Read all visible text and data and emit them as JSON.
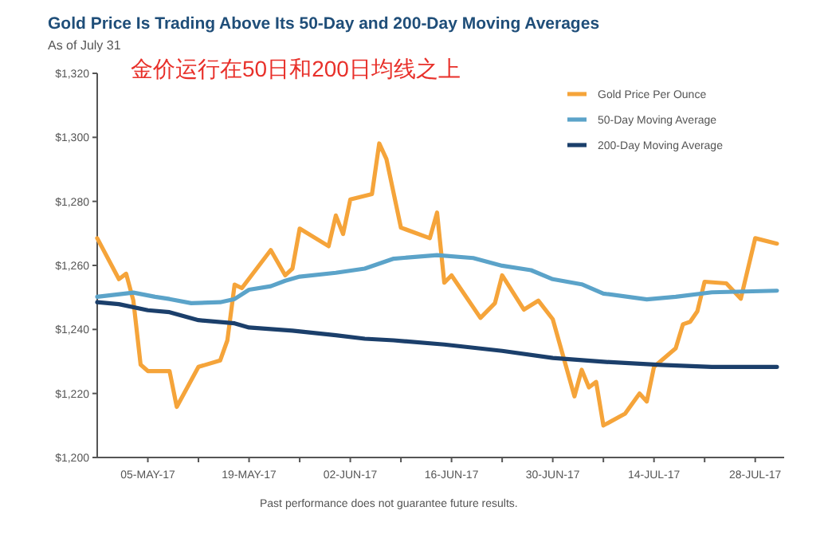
{
  "chart_data": {
    "type": "line",
    "title": "Gold Price Is Trading Above Its 50-Day and 200-Day Moving Averages",
    "subtitle": "As of July 31",
    "annotations": [
      "金价运行在50日和200日均线之上",
      "Past performance does not guarantee future results."
    ],
    "xlim": [
      "--04-28",
      "--08-01"
    ],
    "xticks": [
      {
        "value": "--05-05",
        "label": "05-MAY-17"
      },
      {
        "value": "--05-12",
        "label": null
      },
      {
        "value": "--05-19",
        "label": "19-MAY-17"
      },
      {
        "value": "--05-26",
        "label": null
      },
      {
        "value": "--06-02",
        "label": "02-JUN-17"
      },
      {
        "value": "--06-09",
        "label": null
      },
      {
        "value": "--06-16",
        "label": "16-JUN-17"
      },
      {
        "value": "--06-23",
        "label": null
      },
      {
        "value": "--06-30",
        "label": "30-JUN-17"
      },
      {
        "value": "--07-07",
        "label": null
      },
      {
        "value": "--07-14",
        "label": "14-JUL-17"
      },
      {
        "value": "--07-21",
        "label": null
      },
      {
        "value": "--07-28",
        "label": "28-JUL-17"
      }
    ],
    "ylim": [
      1200,
      1320
    ],
    "yticks": [
      {
        "value": 1200,
        "label": "$1,200"
      },
      {
        "value": 1220,
        "label": "$1,220"
      },
      {
        "value": 1240,
        "label": "$1,240"
      },
      {
        "value": 1260,
        "label": "$1,260"
      },
      {
        "value": 1280,
        "label": "$1,280"
      },
      {
        "value": 1300,
        "label": "$1,300"
      },
      {
        "value": 1320,
        "label": "$1,320"
      }
    ],
    "grid": false,
    "legend": "top right",
    "marker": "none",
    "line_style": "solid",
    "series": [
      {
        "name": "Gold Price Per Ounce",
        "color": "#f5a43a",
        "x": [
          "--04-28",
          "--05-01",
          "--05-02",
          "--05-03",
          "--05-04",
          "--05-05",
          "--05-08",
          "--05-09",
          "--05-12",
          "--05-15",
          "--05-16",
          "--05-17",
          "--05-18",
          "--05-22",
          "--05-24",
          "--05-25",
          "--05-26",
          "--05-30",
          "--05-31",
          "--06-01",
          "--06-02",
          "--06-05",
          "--06-06",
          "--06-07",
          "--06-09",
          "--06-13",
          "--06-14",
          "--06-15",
          "--06-16",
          "--06-20",
          "--06-22",
          "--06-23",
          "--06-26",
          "--06-28",
          "--06-30",
          "--07-03",
          "--07-04",
          "--07-05",
          "--07-06",
          "--07-07",
          "--07-10",
          "--07-12",
          "--07-13",
          "--07-14",
          "--07-17",
          "--07-18",
          "--07-19",
          "--07-20",
          "--07-21",
          "--07-24",
          "--07-26",
          "--07-28",
          "--07-31"
        ],
        "values": [
          1268.5,
          1255.7,
          1257.4,
          1249,
          1229,
          1227,
          1227,
          1215.8,
          1228.3,
          1230.3,
          1236.6,
          1254,
          1252.9,
          1264.8,
          1256.9,
          1259,
          1271.5,
          1266,
          1275.6,
          1269.8,
          1280.6,
          1282.3,
          1298.1,
          1293.2,
          1271.8,
          1268.5,
          1276.5,
          1254.6,
          1256.9,
          1243.6,
          1248.2,
          1256.9,
          1246.2,
          1249,
          1243.2,
          1219.1,
          1227.4,
          1221.9,
          1223.6,
          1210,
          1213.7,
          1220,
          1217.5,
          1228.3,
          1234.1,
          1241.6,
          1242.4,
          1245.7,
          1254.9,
          1254.4,
          1249.6,
          1268.5,
          1266.8
        ]
      },
      {
        "name": "50-Day Moving Average",
        "color": "#5ba3c9",
        "x": [
          "--04-28",
          "--05-03",
          "--05-06",
          "--05-08",
          "--05-11",
          "--05-15",
          "--05-17",
          "--05-19",
          "--05-22",
          "--05-24",
          "--05-26",
          "--05-31",
          "--06-04",
          "--06-08",
          "--06-14",
          "--06-19",
          "--06-23",
          "--06-27",
          "--06-30",
          "--07-04",
          "--07-07",
          "--07-13",
          "--07-17",
          "--07-22",
          "--07-31"
        ],
        "values": [
          1250.2,
          1251.5,
          1250.2,
          1249.5,
          1248.2,
          1248.5,
          1249.5,
          1252.4,
          1253.5,
          1255.2,
          1256.5,
          1257.7,
          1259,
          1262.1,
          1263.2,
          1262.3,
          1259.9,
          1258.5,
          1255.7,
          1254.1,
          1251.2,
          1249.4,
          1250.2,
          1251.6,
          1252.1
        ]
      },
      {
        "name": "200-Day Moving Average",
        "color": "#1b3f6b",
        "x": [
          "--04-28",
          "--05-01",
          "--05-05",
          "--05-08",
          "--05-12",
          "--05-17",
          "--05-19",
          "--05-25",
          "--05-31",
          "--06-04",
          "--06-08",
          "--06-15",
          "--06-23",
          "--06-30",
          "--07-07",
          "--07-15",
          "--07-22",
          "--07-31"
        ],
        "values": [
          1248.5,
          1247.9,
          1246,
          1245.4,
          1242.9,
          1241.9,
          1240.6,
          1239.6,
          1238.2,
          1237.1,
          1236.6,
          1235.3,
          1233.3,
          1231.1,
          1229.9,
          1228.9,
          1228.3,
          1228.3
        ]
      }
    ]
  }
}
